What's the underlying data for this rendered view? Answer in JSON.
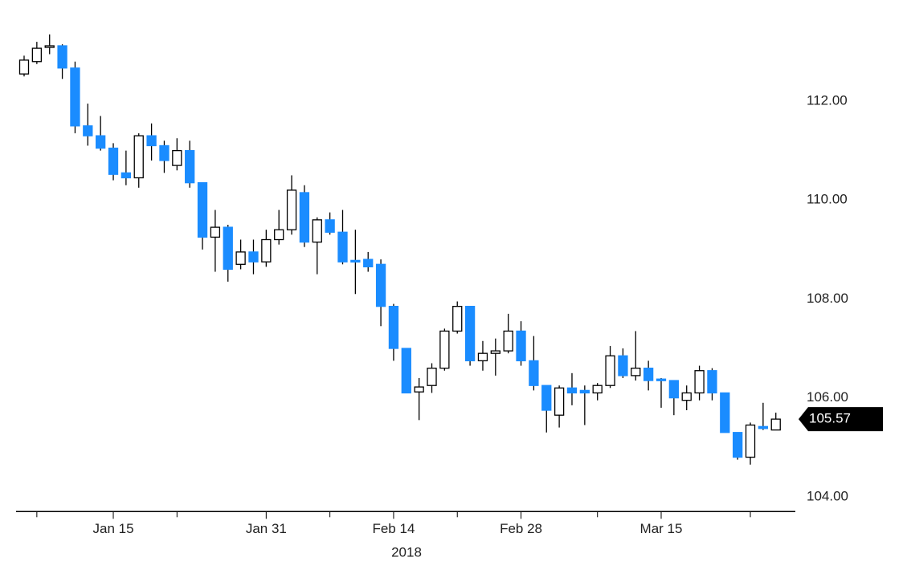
{
  "chart_data": {
    "type": "candlestick",
    "x": [
      "2018-01-04",
      "2018-01-05",
      "2018-01-08",
      "2018-01-09",
      "2018-01-10",
      "2018-01-11",
      "2018-01-12",
      "2018-01-15",
      "2018-01-16",
      "2018-01-17",
      "2018-01-18",
      "2018-01-19",
      "2018-01-22",
      "2018-01-23",
      "2018-01-24",
      "2018-01-25",
      "2018-01-26",
      "2018-01-29",
      "2018-01-30",
      "2018-01-31",
      "2018-02-01",
      "2018-02-02",
      "2018-02-05",
      "2018-02-06",
      "2018-02-07",
      "2018-02-08",
      "2018-02-09",
      "2018-02-12",
      "2018-02-13",
      "2018-02-14",
      "2018-02-15",
      "2018-02-16",
      "2018-02-19",
      "2018-02-20",
      "2018-02-21",
      "2018-02-22",
      "2018-02-23",
      "2018-02-26",
      "2018-02-27",
      "2018-02-28",
      "2018-03-01",
      "2018-03-02",
      "2018-03-05",
      "2018-03-06",
      "2018-03-07",
      "2018-03-08",
      "2018-03-09",
      "2018-03-12",
      "2018-03-13",
      "2018-03-14",
      "2018-03-15",
      "2018-03-16",
      "2018-03-19",
      "2018-03-20",
      "2018-03-21",
      "2018-03-22",
      "2018-03-23",
      "2018-03-26",
      "2018-03-27",
      "2018-03-28"
    ],
    "open": [
      112.55,
      112.8,
      113.1,
      113.12,
      112.67,
      111.5,
      111.3,
      111.05,
      110.55,
      110.45,
      111.3,
      111.1,
      110.7,
      111.0,
      110.35,
      109.25,
      109.45,
      108.7,
      108.95,
      108.75,
      109.2,
      109.4,
      110.15,
      109.15,
      109.6,
      109.35,
      108.78,
      108.8,
      108.7,
      107.85,
      107.0,
      106.12,
      106.25,
      106.6,
      107.35,
      107.85,
      106.75,
      106.9,
      106.95,
      107.35,
      106.75,
      106.25,
      105.65,
      106.2,
      106.15,
      106.1,
      106.25,
      106.85,
      106.45,
      106.6,
      106.38,
      106.35,
      105.95,
      106.1,
      106.55,
      106.1,
      105.3,
      104.8,
      105.42,
      105.35
    ],
    "high": [
      112.92,
      113.2,
      113.35,
      113.15,
      112.8,
      111.95,
      111.7,
      111.15,
      111.0,
      111.35,
      111.55,
      111.2,
      111.25,
      111.2,
      110.35,
      109.8,
      109.5,
      109.2,
      109.2,
      109.4,
      109.8,
      110.5,
      110.3,
      109.65,
      109.75,
      109.8,
      109.4,
      108.95,
      108.8,
      107.9,
      107.0,
      106.4,
      106.7,
      107.4,
      107.95,
      107.85,
      107.15,
      107.2,
      107.7,
      107.55,
      107.25,
      106.25,
      106.25,
      106.5,
      106.25,
      106.3,
      107.05,
      107.0,
      107.35,
      106.75,
      106.4,
      106.35,
      106.25,
      106.65,
      106.6,
      106.1,
      105.3,
      105.5,
      105.9,
      105.7
    ],
    "low": [
      112.5,
      112.75,
      112.95,
      112.45,
      111.35,
      111.1,
      111.0,
      110.4,
      110.3,
      110.25,
      110.8,
      110.55,
      110.6,
      110.25,
      109.0,
      108.55,
      108.35,
      108.6,
      108.5,
      108.65,
      109.1,
      109.3,
      109.05,
      108.5,
      109.3,
      108.7,
      108.1,
      108.55,
      107.45,
      106.75,
      106.1,
      105.55,
      106.1,
      106.55,
      107.3,
      106.65,
      106.55,
      106.45,
      106.9,
      106.65,
      106.15,
      105.3,
      105.4,
      105.85,
      105.45,
      105.95,
      106.2,
      106.4,
      106.35,
      106.15,
      105.8,
      105.65,
      105.75,
      105.95,
      105.95,
      105.3,
      104.75,
      104.65,
      105.35,
      105.35
    ],
    "close": [
      112.83,
      113.07,
      113.12,
      112.67,
      111.5,
      111.3,
      111.05,
      110.52,
      110.45,
      111.3,
      111.1,
      110.8,
      111.0,
      110.35,
      109.25,
      109.45,
      108.6,
      108.95,
      108.75,
      109.2,
      109.4,
      110.2,
      109.15,
      109.6,
      109.35,
      108.75,
      108.75,
      108.65,
      107.85,
      107.0,
      106.1,
      106.22,
      106.6,
      107.35,
      107.85,
      106.75,
      106.9,
      106.95,
      107.35,
      106.75,
      106.25,
      105.75,
      106.2,
      106.1,
      106.1,
      106.25,
      106.85,
      106.45,
      106.6,
      106.35,
      106.35,
      106.0,
      106.1,
      106.55,
      106.1,
      105.3,
      104.8,
      105.45,
      105.38,
      105.57
    ],
    "up_color": "#ffffff",
    "down_color": "#1a8cff",
    "ylim": [
      103.7,
      113.7
    ],
    "yticks": [
      {
        "value": 104,
        "label": "104.00"
      },
      {
        "value": 106,
        "label": "106.00"
      },
      {
        "value": 108,
        "label": "108.00"
      },
      {
        "value": 110,
        "label": "110.00"
      },
      {
        "value": 112,
        "label": "112.00"
      }
    ],
    "xticks": [
      {
        "value": "2018-01-15",
        "label": "Jan 15"
      },
      {
        "value": "2018-01-31",
        "label": "Jan 31"
      },
      {
        "value": "2018-02-14",
        "label": "Feb 14"
      },
      {
        "value": "2018-02-28",
        "label": "Feb 28"
      },
      {
        "value": "2018-03-15",
        "label": "Mar 15"
      }
    ],
    "xminorticks": [
      "2018-01-05",
      "2018-01-22",
      "2018-02-07",
      "2018-02-21",
      "2018-03-08",
      "2018-03-26"
    ],
    "xlabel": "2018",
    "last_price": 105.57
  }
}
